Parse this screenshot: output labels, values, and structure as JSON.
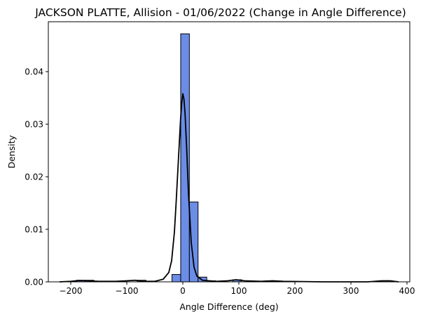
{
  "chart_data": {
    "type": "bar",
    "title": "JACKSON PLATTE, Allision - 01/06/2022 (Change in Angle Difference)",
    "xlabel": "Angle Difference (deg)",
    "ylabel": "Density",
    "xlim": [
      -240,
      405
    ],
    "ylim": [
      0,
      0.0495
    ],
    "x_ticks": [
      -200,
      -100,
      0,
      100,
      200,
      300,
      400
    ],
    "x_tick_labels": [
      "−200",
      "−100",
      "0",
      "100",
      "200",
      "300",
      "400"
    ],
    "y_ticks": [
      0.0,
      0.01,
      0.02,
      0.03,
      0.04
    ],
    "y_tick_labels": [
      "0.00",
      "0.01",
      "0.02",
      "0.03",
      "0.04"
    ],
    "histogram": {
      "bin_edges": [
        -220.8,
        -205.3,
        -189.8,
        -174.3,
        -158.8,
        -143.3,
        -127.8,
        -112.3,
        -96.8,
        -81.3,
        -65.8,
        -50.3,
        -34.8,
        -19.3,
        -3.8,
        11.7,
        27.2,
        42.7,
        58.2,
        73.7,
        89.2,
        104.7,
        120.2,
        135.7,
        151.2,
        166.7,
        182.2,
        197.7,
        213.2,
        228.7,
        244.2,
        259.7,
        275.2,
        290.7,
        306.2,
        321.7,
        337.2,
        352.7,
        368.2,
        383.7
      ],
      "densities": [
        0.0,
        0.0,
        0.0003,
        0.0003,
        0.0,
        0.0,
        0.0,
        0.0,
        0.0,
        0.0003,
        0.0,
        0.0,
        0.0,
        0.0014,
        0.0472,
        0.0152,
        0.0009,
        0.0002,
        0.0,
        0.0,
        0.0004,
        0.0,
        0.0,
        0.0,
        0.0002,
        0.0,
        0.0,
        0.0,
        0.0,
        0.0,
        0.0,
        0.0,
        0.0,
        0.0,
        0.0,
        0.0,
        0.0,
        0.0002,
        0.0
      ]
    },
    "kde": {
      "x": [
        -220,
        -200,
        -185,
        -170,
        -150,
        -120,
        -100,
        -85,
        -70,
        -50,
        -35,
        -25,
        -20,
        -15,
        -12,
        -9,
        -6,
        -4,
        -2,
        0,
        2,
        4,
        7,
        10,
        15,
        20,
        25,
        35,
        60,
        80,
        95,
        110,
        140,
        160,
        180,
        250,
        330,
        355,
        370,
        385
      ],
      "y": [
        0.0,
        0.0001,
        0.00025,
        0.0002,
        0.0001,
        0.0001,
        0.0002,
        0.0003,
        0.0001,
        0.0001,
        0.0005,
        0.0018,
        0.004,
        0.0095,
        0.015,
        0.021,
        0.027,
        0.031,
        0.034,
        0.0358,
        0.0348,
        0.032,
        0.025,
        0.017,
        0.0075,
        0.0028,
        0.0011,
        0.0003,
        0.0001,
        0.0002,
        0.0004,
        0.0002,
        0.0001,
        0.0002,
        0.0001,
        0.0,
        0.0,
        0.0002,
        0.0002,
        0.0
      ]
    },
    "colors": {
      "bar_fill": "#6b8de6",
      "bar_edge": "#000000",
      "kde_line": "#000000"
    },
    "grid": false,
    "legend": "none"
  }
}
